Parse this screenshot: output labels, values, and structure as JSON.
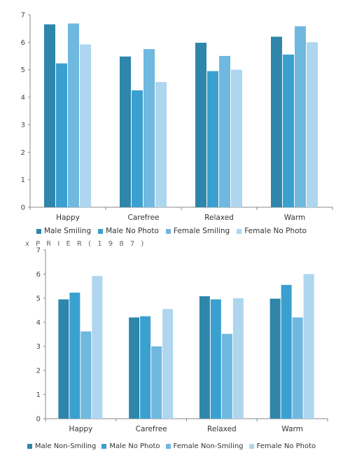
{
  "chart_data": [
    {
      "type": "bar",
      "categories": [
        "Happy",
        "Carefree",
        "Relaxed",
        "Warm"
      ],
      "series": [
        {
          "name": "Male Smiling",
          "values": [
            6.65,
            5.48,
            5.98,
            6.2
          ],
          "color": "#2e86ab"
        },
        {
          "name": "Male No Photo",
          "values": [
            5.23,
            4.25,
            4.95,
            5.55
          ],
          "color": "#3aa0cf"
        },
        {
          "name": "Female Smiling",
          "values": [
            6.68,
            5.75,
            5.5,
            6.58
          ],
          "color": "#6fb8e0"
        },
        {
          "name": "Female No Photo",
          "values": [
            5.92,
            4.55,
            5.0,
            6.0
          ],
          "color": "#aed6ee"
        }
      ],
      "ylim": [
        0,
        7
      ],
      "yticks": [
        0,
        1,
        2,
        3,
        4,
        5,
        6,
        7
      ],
      "legend_position": "bottom",
      "grid": false
    },
    {
      "type": "bar",
      "categories": [
        "Happy",
        "Carefree",
        "Relaxed",
        "Warm"
      ],
      "series": [
        {
          "name": "Male Non-Smiling",
          "values": [
            4.95,
            4.2,
            5.08,
            4.98
          ],
          "color": "#2e86ab"
        },
        {
          "name": "Male No Photo",
          "values": [
            5.23,
            4.25,
            4.95,
            5.55
          ],
          "color": "#3aa0cf"
        },
        {
          "name": "Female Non-Smiling",
          "values": [
            3.62,
            3.0,
            3.52,
            4.2
          ],
          "color": "#6fb8e0"
        },
        {
          "name": "Female No Photo",
          "values": [
            5.92,
            4.55,
            5.0,
            6.0
          ],
          "color": "#aed6ee"
        }
      ],
      "ylim": [
        0,
        7
      ],
      "yticks": [
        0,
        1,
        2,
        3,
        4,
        5,
        6,
        7
      ],
      "legend_position": "bottom",
      "grid": false
    }
  ],
  "stray_text": "x  P R I E R  ( 1 9 8 7 )"
}
